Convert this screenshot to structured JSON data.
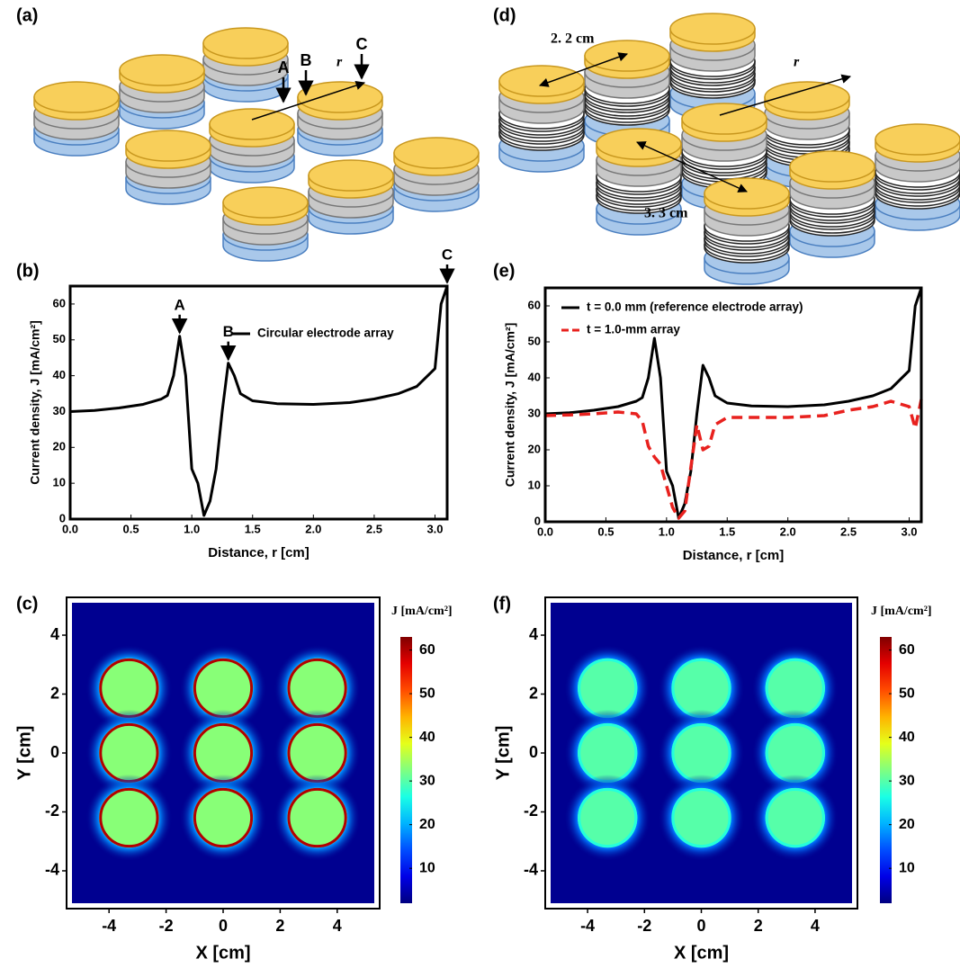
{
  "panels": [
    "(a)",
    "(b)",
    "(c)",
    "(d)",
    "(e)",
    "(f)"
  ],
  "diagram_a": {
    "labels": [
      "A",
      "B",
      "C"
    ],
    "r": "r"
  },
  "diagram_d": {
    "r": "r",
    "short_spacing": "2. 2 cm",
    "long_spacing": "3. 3 cm"
  },
  "chart_data": [
    {
      "type": "line",
      "xlabel": "Distance, r [cm]",
      "ylabel": "Current density, J [mA/cm²]",
      "xlim": [
        0,
        3.1
      ],
      "ylim": [
        0,
        65
      ],
      "xticks": [
        {
          "value": 0,
          "label": "0.0"
        },
        0.5,
        {
          "value": 1,
          "label": "1.0"
        },
        1.5,
        {
          "value": 2,
          "label": "2.0"
        },
        2.5,
        {
          "value": 3,
          "label": "3.0"
        }
      ],
      "yticks": [
        0,
        10,
        20,
        30,
        40,
        50,
        60
      ],
      "x": [
        0,
        0.2,
        0.4,
        0.6,
        0.75,
        0.8,
        0.85,
        0.9,
        0.95,
        1.0,
        1.05,
        1.1,
        1.15,
        1.2,
        1.25,
        1.3,
        1.35,
        1.4,
        1.5,
        1.7,
        2.0,
        2.3,
        2.5,
        2.7,
        2.85,
        3.0,
        3.05,
        3.1
      ],
      "series": [
        {
          "name": "Circular electrode array",
          "color": "#000000",
          "values": [
            30,
            30.3,
            31,
            32,
            33.5,
            34.5,
            40,
            51,
            40,
            14,
            10,
            1,
            5,
            14,
            30,
            43.5,
            40,
            35,
            33,
            32.2,
            32,
            32.5,
            33.5,
            35,
            37,
            42,
            60,
            65
          ]
        }
      ],
      "annotations": [
        "A",
        "B",
        "C"
      ]
    },
    {
      "type": "line",
      "xlabel": "Distance, r [cm]",
      "ylabel": "Current density, J [mA/cm²]",
      "xlim": [
        0,
        3.1
      ],
      "ylim": [
        0,
        65
      ],
      "xticks": [
        {
          "value": 0,
          "label": "0.0"
        },
        0.5,
        {
          "value": 1,
          "label": "1.0"
        },
        1.5,
        {
          "value": 2,
          "label": "2.0"
        },
        2.5,
        {
          "value": 3,
          "label": "3.0"
        }
      ],
      "yticks": [
        0,
        10,
        20,
        30,
        40,
        50,
        60
      ],
      "x": [
        0,
        0.2,
        0.4,
        0.6,
        0.75,
        0.8,
        0.85,
        0.9,
        0.95,
        1.0,
        1.05,
        1.1,
        1.15,
        1.2,
        1.25,
        1.3,
        1.35,
        1.4,
        1.5,
        1.7,
        2.0,
        2.3,
        2.5,
        2.7,
        2.85,
        3.0,
        3.05,
        3.1
      ],
      "series": [
        {
          "name": "t = 0.0 mm (reference electrode array)",
          "color": "#000000",
          "values": [
            30,
            30.3,
            31,
            32,
            33.5,
            34.5,
            40,
            51,
            40,
            14,
            10,
            1,
            5,
            14,
            30,
            43.5,
            40,
            35,
            33,
            32.2,
            32,
            32.5,
            33.5,
            35,
            37,
            42,
            60,
            65
          ]
        },
        {
          "name": "t = 1.0-mm array",
          "color": "#e8211e",
          "dashed": true,
          "values": [
            29.5,
            29.7,
            30,
            30.5,
            30,
            28,
            21,
            18,
            16,
            10,
            4,
            1,
            3,
            15,
            27,
            20,
            21,
            27,
            29,
            29,
            29,
            29.5,
            31,
            32,
            33.5,
            32,
            26,
            34
          ]
        }
      ]
    },
    {
      "type": "heatmap",
      "xlabel": "X [cm]",
      "ylabel": "Y [cm]",
      "colorbar_label": "J [mA/cm²]",
      "xlim": [
        -5.3,
        5.3
      ],
      "ylim": [
        -5.1,
        5.1
      ],
      "xticks": [
        -4,
        -2,
        0,
        2,
        4
      ],
      "yticks": [
        -4,
        -2,
        0,
        2,
        4
      ],
      "clim": [
        2,
        63
      ],
      "cticks": [
        10,
        20,
        30,
        40,
        50,
        60
      ],
      "electrode_x": [
        -3.3,
        0,
        3.3
      ],
      "electrode_y": [
        2.2,
        0,
        -2.2
      ],
      "electrode_radius": 1.05,
      "background_value": 3,
      "interior_value": 33,
      "edge_value": 60
    },
    {
      "type": "heatmap",
      "xlabel": "X [cm]",
      "ylabel": "Y [cm]",
      "colorbar_label": "J [mA/cm²]",
      "xlim": [
        -5.3,
        5.3
      ],
      "ylim": [
        -5.1,
        5.1
      ],
      "xticks": [
        -4,
        -2,
        0,
        2,
        4
      ],
      "yticks": [
        -4,
        -2,
        0,
        2,
        4
      ],
      "clim": [
        2,
        63
      ],
      "cticks": [
        10,
        20,
        30,
        40,
        50,
        60
      ],
      "electrode_x": [
        -3.3,
        0,
        3.3
      ],
      "electrode_y": [
        2.2,
        0,
        -2.2
      ],
      "electrode_radius": 1.05,
      "background_value": 3,
      "interior_value": 30,
      "edge_value": 27
    }
  ]
}
